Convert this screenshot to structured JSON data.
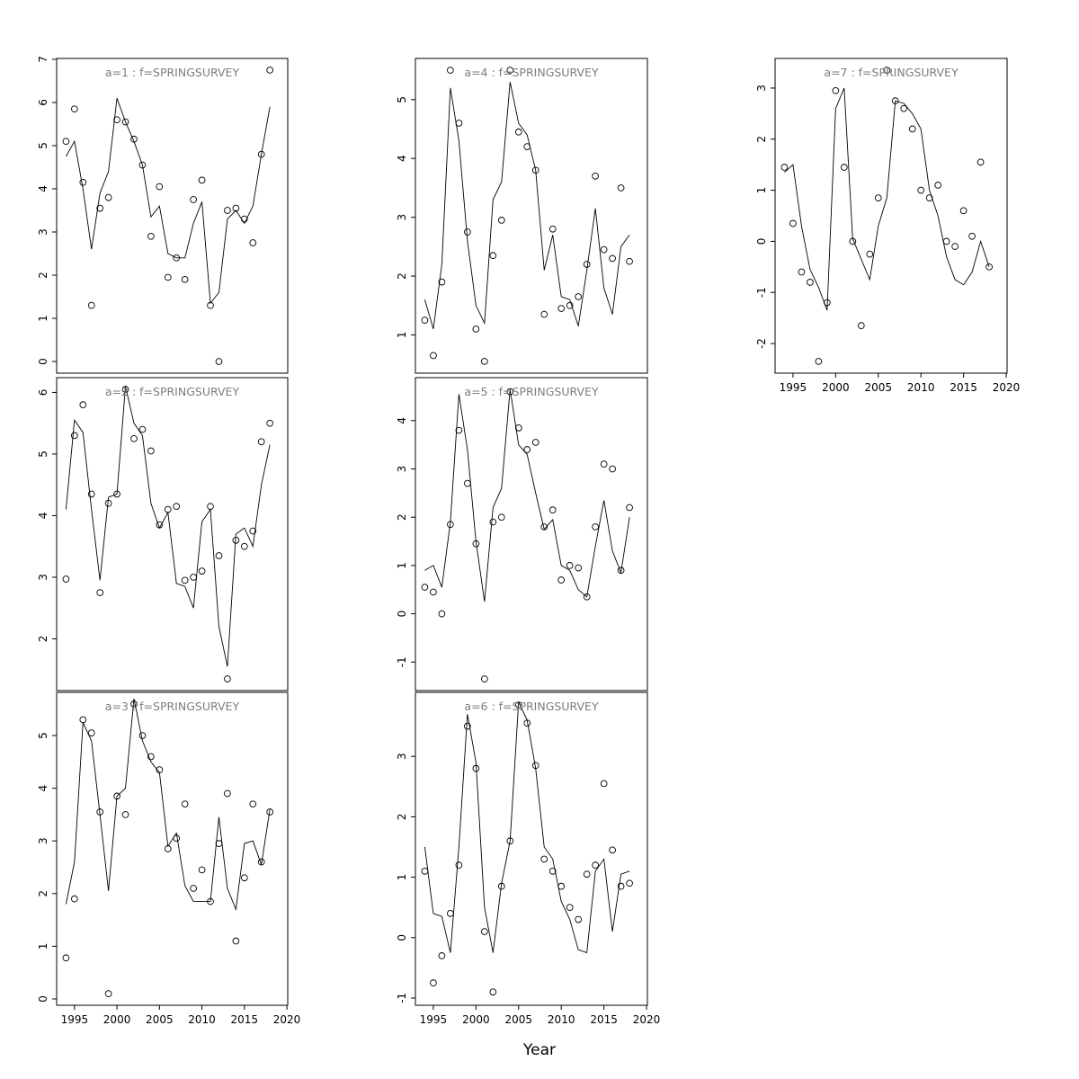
{
  "figure": {
    "xlabel": "Year",
    "xlim": [
      1992.9,
      2020.1
    ],
    "x_ticks": [
      1995,
      2000,
      2005,
      2010,
      2015,
      2020
    ],
    "years": [
      1994,
      1995,
      1996,
      1997,
      1998,
      1999,
      2000,
      2001,
      2002,
      2003,
      2004,
      2005,
      2006,
      2007,
      2008,
      2009,
      2010,
      2011,
      2012,
      2013,
      2014,
      2015,
      2016,
      2017,
      2018
    ],
    "marker": "open-circle",
    "colors": {
      "line": "#000000",
      "point": "#000000",
      "title": "#7d7d7d",
      "axis": "#000000",
      "background": "#ffffff"
    }
  },
  "chart_data": [
    {
      "id": "a1",
      "type": "line",
      "title": "a=1 : f=SPRINGSURVEY",
      "grid": {
        "col": 0,
        "row": 0
      },
      "show_x_axis": false,
      "ylim": [
        -0.27,
        7.02
      ],
      "y_ticks": [
        0,
        1,
        2,
        3,
        4,
        5,
        6,
        7
      ],
      "points": [
        5.1,
        5.85,
        4.15,
        1.3,
        3.55,
        3.8,
        5.6,
        5.55,
        5.15,
        4.55,
        2.9,
        4.05,
        1.95,
        2.4,
        1.9,
        3.75,
        4.2,
        1.3,
        0.0,
        3.5,
        3.55,
        3.3,
        2.75,
        4.8,
        6.75
      ],
      "line": [
        4.75,
        5.1,
        4.0,
        2.6,
        3.9,
        4.4,
        6.1,
        5.55,
        5.1,
        4.55,
        3.35,
        3.6,
        2.5,
        2.4,
        2.4,
        3.2,
        3.7,
        1.35,
        1.6,
        3.3,
        3.5,
        3.2,
        3.6,
        4.8,
        5.9
      ]
    },
    {
      "id": "a2",
      "type": "line",
      "title": "a=2 : f=SPRINGSURVEY",
      "grid": {
        "col": 0,
        "row": 1
      },
      "show_x_axis": false,
      "ylim": [
        1.16,
        6.24
      ],
      "y_ticks": [
        2,
        3,
        4,
        5,
        6
      ],
      "points": [
        2.97,
        5.3,
        5.8,
        4.35,
        2.75,
        4.2,
        4.35,
        6.05,
        5.25,
        5.4,
        5.05,
        3.85,
        4.1,
        4.15,
        2.95,
        3.0,
        3.1,
        4.15,
        3.35,
        1.35,
        3.6,
        3.5,
        3.75,
        5.2,
        5.5
      ],
      "line": [
        4.1,
        5.55,
        5.35,
        4.1,
        2.95,
        4.3,
        4.35,
        6.1,
        5.5,
        5.3,
        4.2,
        3.8,
        4.05,
        2.9,
        2.85,
        2.5,
        3.9,
        4.1,
        2.2,
        1.55,
        3.7,
        3.8,
        3.5,
        4.5,
        5.15
      ]
    },
    {
      "id": "a3",
      "type": "line",
      "title": "a=3 : f=SPRINGSURVEY",
      "grid": {
        "col": 0,
        "row": 2
      },
      "show_x_axis": true,
      "ylim": [
        -0.12,
        5.82
      ],
      "y_ticks": [
        0,
        1,
        2,
        3,
        4,
        5
      ],
      "points": [
        0.78,
        1.9,
        5.3,
        5.05,
        3.55,
        0.1,
        3.85,
        3.5,
        5.6,
        5.0,
        4.6,
        4.35,
        2.85,
        3.05,
        3.7,
        2.1,
        2.45,
        1.85,
        2.95,
        3.9,
        1.1,
        2.3,
        3.7,
        2.6,
        3.55
      ],
      "line": [
        1.8,
        2.6,
        5.25,
        4.9,
        3.5,
        2.05,
        3.85,
        4.0,
        5.7,
        4.9,
        4.5,
        4.3,
        2.9,
        3.15,
        2.15,
        1.85,
        1.85,
        1.85,
        3.45,
        2.1,
        1.7,
        2.95,
        3.0,
        2.55,
        3.6
      ]
    },
    {
      "id": "a4",
      "type": "line",
      "title": "a=4 : f=SPRINGSURVEY",
      "grid": {
        "col": 1,
        "row": 0
      },
      "show_x_axis": false,
      "ylim": [
        0.35,
        5.7
      ],
      "y_ticks": [
        1,
        2,
        3,
        4,
        5
      ],
      "points": [
        1.25,
        0.65,
        1.9,
        5.5,
        4.6,
        2.75,
        1.1,
        0.55,
        2.35,
        2.95,
        5.5,
        4.45,
        4.2,
        3.8,
        1.35,
        2.8,
        1.45,
        1.5,
        1.65,
        2.2,
        3.7,
        2.45,
        2.3,
        3.5,
        2.25
      ],
      "line": [
        1.6,
        1.1,
        2.2,
        5.2,
        4.3,
        2.6,
        1.5,
        1.2,
        3.3,
        3.6,
        5.3,
        4.6,
        4.4,
        3.8,
        2.1,
        2.7,
        1.65,
        1.6,
        1.15,
        2.1,
        3.15,
        1.8,
        1.35,
        2.5,
        2.7
      ]
    },
    {
      "id": "a5",
      "type": "line",
      "title": "a=5 : f=SPRINGSURVEY",
      "grid": {
        "col": 1,
        "row": 1
      },
      "show_x_axis": false,
      "ylim": [
        -1.59,
        4.89
      ],
      "y_ticks": [
        -1,
        0,
        1,
        2,
        3,
        4
      ],
      "points": [
        0.55,
        0.45,
        0.0,
        1.85,
        3.8,
        2.7,
        1.45,
        -1.35,
        1.9,
        2.0,
        4.6,
        3.85,
        3.4,
        3.55,
        1.8,
        2.15,
        0.7,
        1.0,
        0.95,
        0.35,
        1.8,
        3.1,
        3.0,
        0.9,
        2.2
      ],
      "line": [
        0.9,
        1.0,
        0.55,
        1.9,
        4.55,
        3.4,
        1.5,
        0.25,
        2.2,
        2.6,
        4.65,
        3.5,
        3.3,
        2.5,
        1.75,
        1.95,
        1.0,
        0.9,
        0.5,
        0.35,
        1.4,
        2.35,
        1.3,
        0.85,
        2.0
      ]
    },
    {
      "id": "a6",
      "type": "line",
      "title": "a=6 : f=SPRINGSURVEY",
      "grid": {
        "col": 1,
        "row": 2
      },
      "show_x_axis": true,
      "ylim": [
        -1.12,
        4.06
      ],
      "y_ticks": [
        -1,
        0,
        1,
        2,
        3
      ],
      "points": [
        1.1,
        -0.75,
        -0.3,
        0.4,
        1.2,
        3.5,
        2.8,
        0.1,
        -0.9,
        0.85,
        1.6,
        3.85,
        3.55,
        2.85,
        1.3,
        1.1,
        0.85,
        0.5,
        0.3,
        1.05,
        1.2,
        2.55,
        1.45,
        0.85,
        0.9
      ],
      "line": [
        1.5,
        0.4,
        0.35,
        -0.25,
        1.5,
        3.7,
        2.9,
        0.5,
        -0.25,
        0.9,
        1.6,
        3.9,
        3.6,
        2.8,
        1.5,
        1.3,
        0.6,
        0.3,
        -0.2,
        -0.25,
        1.1,
        1.3,
        0.1,
        1.05,
        1.1
      ]
    },
    {
      "id": "a7",
      "type": "line",
      "title": "a=7 : f=SPRINGSURVEY",
      "grid": {
        "col": 2,
        "row": 0
      },
      "show_x_axis": true,
      "ylim": [
        -2.58,
        3.58
      ],
      "y_ticks": [
        -2,
        -1,
        0,
        1,
        2,
        3
      ],
      "points": [
        1.45,
        0.35,
        -0.6,
        -0.8,
        -2.35,
        -1.2,
        2.95,
        1.45,
        0.0,
        -1.65,
        -0.25,
        0.85,
        3.35,
        2.75,
        2.6,
        2.2,
        1.0,
        0.85,
        1.1,
        0.0,
        -0.1,
        0.6,
        0.1,
        1.55,
        -0.5
      ],
      "line": [
        1.35,
        1.5,
        0.3,
        -0.55,
        -0.9,
        -1.35,
        2.6,
        3.0,
        0.05,
        -0.35,
        -0.75,
        0.3,
        0.85,
        2.75,
        2.7,
        2.5,
        2.2,
        1.0,
        0.5,
        -0.3,
        -0.75,
        -0.85,
        -0.6,
        0.0,
        -0.5
      ]
    }
  ]
}
